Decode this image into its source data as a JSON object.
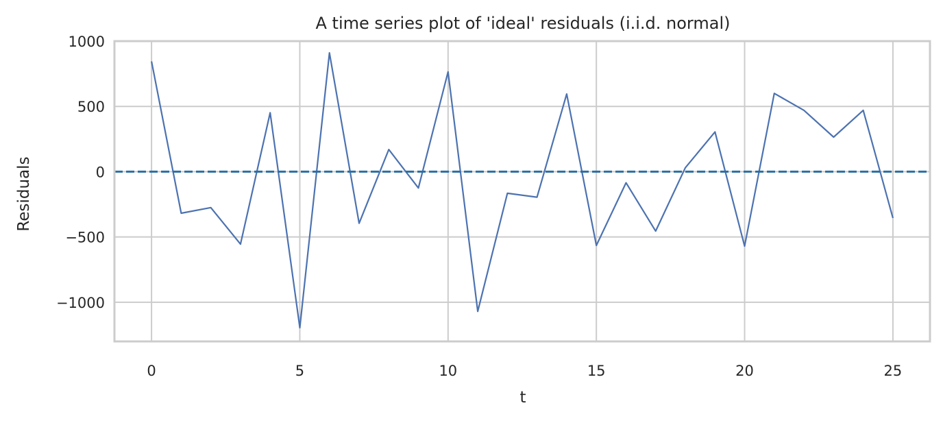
{
  "chart_data": {
    "type": "line",
    "title": "A time series plot of 'ideal' residuals (i.i.d. normal)",
    "xlabel": "t",
    "ylabel": "Residuals",
    "xlim": [
      -1.25,
      26.25
    ],
    "ylim": [
      -1300,
      1000
    ],
    "x_ticks": [
      0,
      5,
      10,
      15,
      20,
      25
    ],
    "x_tick_labels": [
      "0",
      "5",
      "10",
      "15",
      "20",
      "25"
    ],
    "y_ticks": [
      1000,
      500,
      0,
      -500,
      -1000
    ],
    "y_tick_labels": [
      "1000",
      "500",
      "0",
      "−500",
      "−1000"
    ],
    "grid": true,
    "series": [
      {
        "color": "#4c72b0",
        "x": [
          0,
          1,
          2,
          3,
          4,
          5,
          6,
          7,
          8,
          9,
          10,
          11,
          12,
          13,
          14,
          15,
          16,
          17,
          18,
          19,
          20,
          21,
          22,
          23,
          24,
          25
        ],
        "values": [
          845,
          -318,
          -275,
          -555,
          452,
          -1195,
          910,
          -395,
          170,
          -125,
          765,
          -1070,
          -165,
          -195,
          595,
          -565,
          -85,
          -455,
          30,
          305,
          -570,
          600,
          470,
          265,
          470,
          -355
        ]
      }
    ],
    "reference_line": {
      "y": 0,
      "style": "dashed",
      "color": "#2a6fa3"
    },
    "colors": {
      "grid": "#cccccc",
      "frame": "#cccccc",
      "text": "#262626"
    }
  }
}
